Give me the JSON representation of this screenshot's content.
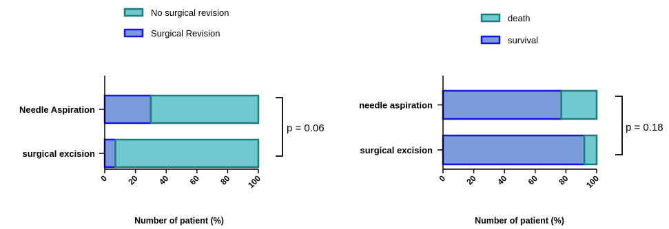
{
  "colors": {
    "teal_fill": "#6fcad0",
    "teal_stroke": "#1f7a7a",
    "blue_fill": "#7b9bdb",
    "blue_stroke": "#1414e6"
  },
  "chart_data": [
    {
      "type": "bar",
      "orientation": "horizontal",
      "stacked": true,
      "categories": [
        "Needle Aspiration",
        "surgical excision"
      ],
      "series": [
        {
          "name": "Surgical Revision",
          "values": [
            30,
            7
          ]
        },
        {
          "name": "No surgical revision",
          "values": [
            70,
            93
          ]
        }
      ],
      "xlabel": "Number of patient (%)",
      "xlim": [
        0,
        100
      ],
      "xticks": [
        "0",
        "20",
        "40",
        "60",
        "80",
        "100"
      ],
      "legend": [
        "No surgical revision",
        "Surgical Revision"
      ],
      "legend_position": "top-left",
      "annotation": "p = 0.06",
      "grid": false
    },
    {
      "type": "bar",
      "orientation": "horizontal",
      "stacked": true,
      "categories": [
        "needle aspiration",
        "surgical excision"
      ],
      "series": [
        {
          "name": "survival",
          "values": [
            77,
            92
          ]
        },
        {
          "name": "death",
          "values": [
            23,
            8
          ]
        }
      ],
      "xlabel": "Number of patient (%)",
      "xlim": [
        0,
        100
      ],
      "xticks": [
        "0",
        "20",
        "40",
        "60",
        "80",
        "100"
      ],
      "legend": [
        "death",
        "survival"
      ],
      "legend_position": "top-left",
      "annotation": "p = 0.18",
      "grid": false
    }
  ]
}
